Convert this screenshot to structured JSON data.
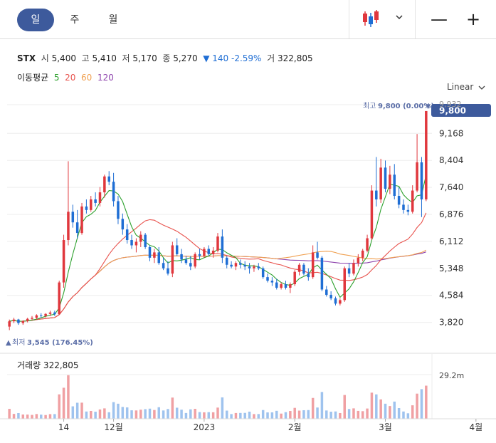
{
  "toolbar": {
    "periods": [
      "일",
      "주",
      "월"
    ],
    "active_period": "일",
    "chart_type_icon": "candlestick-icon",
    "zoom_out": "—",
    "zoom_in": "+"
  },
  "info": {
    "symbol": "STX",
    "open_label": "시",
    "open": "5,400",
    "high_label": "고",
    "high": "5,410",
    "low_label": "저",
    "low": "5,170",
    "close_label": "종",
    "close": "5,270",
    "change": "▼ 140 -2.59%",
    "volume_label": "거",
    "volume": "322,805"
  },
  "ma_legend": {
    "label": "이동평균",
    "items": [
      {
        "period": "5",
        "color": "#2ca02c"
      },
      {
        "period": "20",
        "color": "#e8534e"
      },
      {
        "period": "60",
        "color": "#f0a050"
      },
      {
        "period": "120",
        "color": "#8e44ad"
      }
    ]
  },
  "scale_label": "Linear",
  "volume_panel": {
    "label": "거래량 322,805",
    "axis_tick": "29.2m"
  },
  "chart_data": {
    "type": "candlestick",
    "yticks": [
      3820,
      4584,
      5348,
      6112,
      6876,
      7640,
      8404,
      9168
    ],
    "ytick_labels": [
      "3,820",
      "4,584",
      "5,348",
      "6,112",
      "6,876",
      "7,640",
      "8,404",
      "9,168"
    ],
    "ylim": [
      3470,
      9980
    ],
    "top_tick_partial": "9,932",
    "xtick_labels": [
      {
        "label": "14",
        "index": 12
      },
      {
        "label": "12월",
        "index": 23
      },
      {
        "label": "2023",
        "index": 43
      },
      {
        "label": "2월",
        "index": 63
      },
      {
        "label": "3월",
        "index": 83
      },
      {
        "label": "4월",
        "index": 103
      }
    ],
    "high_marker": {
      "label": "최고",
      "value": "9,800 (0.00%)"
    },
    "low_marker": {
      "label": "최저",
      "value": "3,545 (176.45%)"
    },
    "last_price": "9,800",
    "up_color": "#e0373d",
    "down_color": "#1f6ed4",
    "candles": [
      [
        3700,
        3900,
        3600,
        3850
      ],
      [
        3850,
        3950,
        3800,
        3900
      ],
      [
        3900,
        3920,
        3750,
        3800
      ],
      [
        3800,
        3880,
        3750,
        3860
      ],
      [
        3860,
        3950,
        3820,
        3920
      ],
      [
        3920,
        4000,
        3880,
        3950
      ],
      [
        3950,
        4050,
        3900,
        4020
      ],
      [
        4020,
        4080,
        3950,
        4000
      ],
      [
        4000,
        4080,
        3960,
        4060
      ],
      [
        4060,
        4150,
        4000,
        4100
      ],
      [
        4100,
        4150,
        4000,
        4050
      ],
      [
        4050,
        5000,
        4050,
        4950
      ],
      [
        4950,
        6300,
        4800,
        6150
      ],
      [
        6150,
        8380,
        6000,
        6950
      ],
      [
        6950,
        7150,
        6500,
        6650
      ],
      [
        6650,
        7000,
        6200,
        6350
      ],
      [
        6350,
        7200,
        6300,
        7100
      ],
      [
        7100,
        7300,
        6900,
        7000
      ],
      [
        7000,
        7400,
        6950,
        7300
      ],
      [
        7300,
        7500,
        7100,
        7200
      ],
      [
        7200,
        7650,
        7100,
        7500
      ],
      [
        7500,
        8000,
        7350,
        7950
      ],
      [
        7950,
        8100,
        7700,
        7800
      ],
      [
        7800,
        8050,
        7100,
        7250
      ],
      [
        7250,
        7400,
        6600,
        6750
      ],
      [
        6750,
        6900,
        6300,
        6450
      ],
      [
        6450,
        6600,
        6050,
        6150
      ],
      [
        6150,
        6300,
        5900,
        6000
      ],
      [
        6000,
        6200,
        5800,
        6100
      ],
      [
        6100,
        6400,
        5950,
        6300
      ],
      [
        6300,
        6350,
        5900,
        5950
      ],
      [
        5950,
        6000,
        5550,
        5650
      ],
      [
        5650,
        5900,
        5500,
        5800
      ],
      [
        5800,
        5950,
        5450,
        5500
      ],
      [
        5500,
        5650,
        5300,
        5350
      ],
      [
        5350,
        5550,
        5150,
        5200
      ],
      [
        5200,
        6100,
        5100,
        6000
      ],
      [
        6000,
        6200,
        5700,
        5750
      ],
      [
        5750,
        5900,
        5500,
        5600
      ],
      [
        5600,
        5700,
        5450,
        5500
      ],
      [
        5500,
        5700,
        5300,
        5400
      ],
      [
        5400,
        5800,
        5350,
        5750
      ],
      [
        5750,
        5900,
        5600,
        5700
      ],
      [
        5700,
        5950,
        5650,
        5900
      ],
      [
        5900,
        6000,
        5700,
        5750
      ],
      [
        5750,
        5950,
        5650,
        5850
      ],
      [
        5850,
        6350,
        5800,
        6250
      ],
      [
        6250,
        6450,
        5500,
        5650
      ],
      [
        5650,
        5700,
        5350,
        5450
      ],
      [
        5450,
        5550,
        5350,
        5400
      ],
      [
        5400,
        5550,
        5300,
        5500
      ],
      [
        5500,
        5600,
        5350,
        5450
      ],
      [
        5450,
        5550,
        5300,
        5400
      ],
      [
        5400,
        5500,
        5200,
        5350
      ],
      [
        5350,
        5450,
        5250,
        5400
      ],
      [
        5400,
        5500,
        5300,
        5350
      ],
      [
        5350,
        5400,
        5050,
        5100
      ],
      [
        5100,
        5200,
        4950,
        5000
      ],
      [
        5000,
        5100,
        4850,
        4950
      ],
      [
        4950,
        5050,
        4750,
        4800
      ],
      [
        4800,
        4950,
        4750,
        4900
      ],
      [
        4900,
        5000,
        4750,
        4800
      ],
      [
        4800,
        4950,
        4650,
        4900
      ],
      [
        4900,
        5300,
        4850,
        5250
      ],
      [
        5250,
        5500,
        5150,
        5450
      ],
      [
        5450,
        5500,
        5150,
        5200
      ],
      [
        5200,
        5350,
        5000,
        5100
      ],
      [
        5100,
        6000,
        5050,
        5800
      ],
      [
        5800,
        6100,
        5600,
        5650
      ],
      [
        5650,
        5700,
        4700,
        4750
      ],
      [
        4750,
        4850,
        4550,
        4600
      ],
      [
        4600,
        4700,
        4450,
        4500
      ],
      [
        4500,
        4550,
        4300,
        4350
      ],
      [
        4350,
        4500,
        4300,
        4450
      ],
      [
        4450,
        5400,
        4400,
        5350
      ],
      [
        5350,
        5500,
        5100,
        5200
      ],
      [
        5200,
        5600,
        5150,
        5500
      ],
      [
        5500,
        5750,
        5400,
        5650
      ],
      [
        5650,
        5900,
        5550,
        5850
      ],
      [
        5850,
        6300,
        5800,
        6200
      ],
      [
        6200,
        7700,
        6150,
        7550
      ],
      [
        7550,
        8500,
        7100,
        7300
      ],
      [
        7300,
        8450,
        7200,
        8200
      ],
      [
        8200,
        8400,
        7500,
        7600
      ],
      [
        7600,
        8250,
        7450,
        8000
      ],
      [
        8000,
        8300,
        7300,
        7400
      ],
      [
        7400,
        7650,
        7050,
        7150
      ],
      [
        7150,
        7300,
        6900,
        7000
      ],
      [
        7000,
        7150,
        6850,
        6950
      ],
      [
        6950,
        7700,
        6900,
        7550
      ],
      [
        7550,
        9150,
        7500,
        8350
      ],
      [
        8350,
        8500,
        6800,
        7300
      ],
      [
        7300,
        9800,
        7250,
        9800
      ]
    ]
  }
}
